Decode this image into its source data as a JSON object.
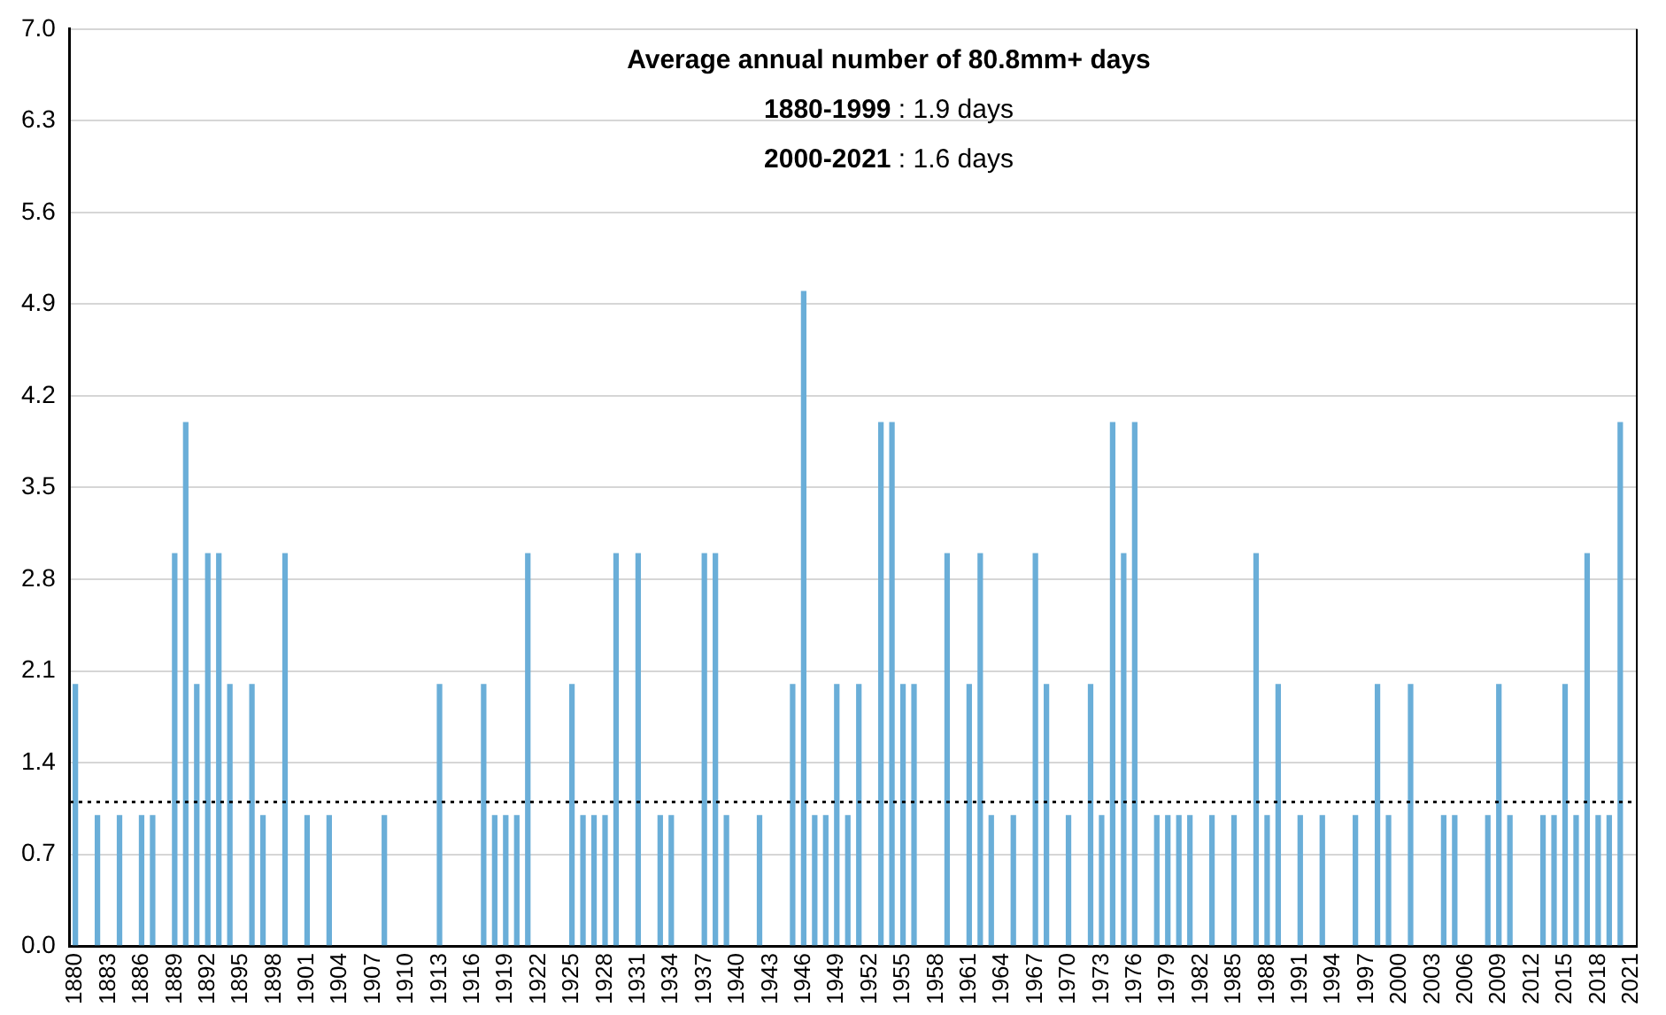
{
  "chart_data": {
    "type": "bar",
    "title": "Average annual number of 80.8mm+ days",
    "annotations": [
      "1880-1999 : 1.9 days",
      "2000-2021 : 1.6 days"
    ],
    "categories": [
      "1880",
      null,
      null,
      "1883",
      null,
      null,
      "1886",
      null,
      null,
      "1889",
      null,
      null,
      "1892",
      null,
      null,
      "1895",
      null,
      null,
      "1898",
      null,
      null,
      "1901",
      null,
      null,
      "1904",
      null,
      null,
      "1907",
      null,
      null,
      "1910",
      null,
      null,
      "1913",
      null,
      null,
      "1916",
      null,
      null,
      "1919",
      null,
      null,
      "1922",
      null,
      null,
      "1925",
      null,
      null,
      "1928",
      null,
      null,
      "1931",
      null,
      null,
      "1934",
      null,
      null,
      "1937",
      null,
      null,
      "1940",
      null,
      null,
      "1943",
      null,
      null,
      "1946",
      null,
      null,
      "1949",
      null,
      null,
      "1952",
      null,
      null,
      "1955",
      null,
      null,
      "1958",
      null,
      null,
      "1961",
      null,
      null,
      "1964",
      null,
      null,
      "1967",
      null,
      null,
      "1970",
      null,
      null,
      "1973",
      null,
      null,
      "1976",
      null,
      null,
      "1979",
      null,
      null,
      "1982",
      null,
      null,
      "1985",
      null,
      null,
      "1988",
      null,
      null,
      "1991",
      null,
      null,
      "1994",
      null,
      null,
      "1997",
      null,
      null,
      "2000",
      null,
      null,
      "2003",
      null,
      null,
      "2006",
      null,
      null,
      "2009",
      null,
      null,
      "2012",
      null,
      null,
      "2015",
      null,
      null,
      "2018",
      null,
      null,
      "2021"
    ],
    "values": [
      2,
      0,
      1,
      0,
      1,
      0,
      1,
      1,
      0,
      3,
      4,
      2,
      3,
      3,
      2,
      0,
      2,
      1,
      0,
      3,
      0,
      1,
      0,
      1,
      0,
      0,
      0,
      0,
      1,
      0,
      0,
      0,
      0,
      2,
      0,
      0,
      0,
      2,
      1,
      1,
      1,
      3,
      0,
      0,
      0,
      2,
      1,
      1,
      1,
      3,
      0,
      3,
      0,
      1,
      1,
      0,
      0,
      3,
      3,
      1,
      0,
      0,
      1,
      0,
      0,
      2,
      5,
      1,
      1,
      2,
      1,
      2,
      0,
      4,
      4,
      2,
      2,
      0,
      0,
      3,
      0,
      2,
      3,
      1,
      0,
      1,
      0,
      3,
      2,
      0,
      1,
      0,
      2,
      1,
      4,
      3,
      4,
      0,
      1,
      1,
      1,
      1,
      0,
      1,
      0,
      1,
      0,
      3,
      1,
      2,
      0,
      1,
      0,
      1,
      0,
      0,
      1,
      0,
      2,
      1,
      0,
      2,
      0,
      0,
      1,
      1,
      0,
      0,
      1,
      2,
      1,
      0,
      0,
      1,
      1,
      2,
      1,
      3,
      1,
      1,
      4,
      0
    ],
    "color": "#6aaed8",
    "ylim": [
      0,
      7
    ],
    "yticks": [
      {
        "value": 0,
        "label": "0.0"
      },
      {
        "value": 0.7,
        "label": "0.7"
      },
      {
        "value": 1.4,
        "label": "1.4"
      },
      {
        "value": 2.1,
        "label": "2.1"
      },
      {
        "value": 2.8,
        "label": "2.8"
      },
      {
        "value": 3.5,
        "label": "3.5"
      },
      {
        "value": 4.2,
        "label": "4.2"
      },
      {
        "value": 4.9,
        "label": "4.9"
      },
      {
        "value": 5.6,
        "label": "5.6"
      },
      {
        "value": 6.3,
        "label": "6.3"
      },
      {
        "value": 7,
        "label": "7.0"
      }
    ],
    "grid": "y",
    "legend": false,
    "ref_lines": [
      {
        "axis": "y",
        "value": 1.1,
        "color": "#000000",
        "line_style": "dotted"
      }
    ]
  }
}
